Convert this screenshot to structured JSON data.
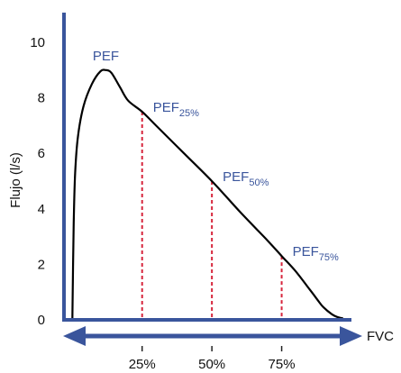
{
  "chart_data": {
    "type": "line",
    "ylabel": "Flujo (l/s)",
    "xlabel": "FVC",
    "ylim": [
      0,
      10
    ],
    "yticks": [
      "0",
      "2",
      "4",
      "6",
      "8",
      "10"
    ],
    "xlim": [
      -0.03,
      1.0
    ],
    "xticks": [
      {
        "value": 0.25,
        "label": "25%"
      },
      {
        "value": 0.5,
        "label": "50%"
      },
      {
        "value": 0.75,
        "label": "75%"
      }
    ],
    "grid": false,
    "series": [
      {
        "color": "#000000",
        "x": [
          0.0,
          0.005,
          0.01,
          0.02,
          0.04,
          0.07,
          0.1,
          0.12,
          0.14,
          0.17,
          0.2,
          0.25,
          0.3,
          0.4,
          0.5,
          0.6,
          0.7,
          0.75,
          0.8,
          0.85,
          0.88,
          0.9,
          0.93,
          0.95,
          0.97
        ],
        "y": [
          0.0,
          3.5,
          5.3,
          6.6,
          7.7,
          8.5,
          8.95,
          9.0,
          8.9,
          8.4,
          7.9,
          7.5,
          7.0,
          6.0,
          5.0,
          3.9,
          2.85,
          2.3,
          1.75,
          1.1,
          0.7,
          0.45,
          0.2,
          0.1,
          0.05
        ],
        "labels": [
          "PEF",
          "PEF",
          "25%",
          "PEF",
          "50%",
          "PEF",
          "75%"
        ]
      }
    ],
    "annotations": [
      {
        "text": "PEF",
        "sub": "",
        "x": 0.12,
        "y": 9.0
      },
      {
        "text": "PEF",
        "sub": "25%",
        "x": 0.25,
        "y": 7.5
      },
      {
        "text": "PEF",
        "sub": "50%",
        "x": 0.5,
        "y": 5.0
      },
      {
        "text": "PEF",
        "sub": "75%",
        "x": 0.75,
        "y": 2.3
      }
    ],
    "markers": [
      {
        "x": 0.25,
        "y": 7.5,
        "color": "#d7263d"
      },
      {
        "x": 0.5,
        "y": 5.0,
        "color": "#d7263d"
      },
      {
        "x": 0.75,
        "y": 2.3,
        "color": "#d7263d"
      }
    ],
    "colors": {
      "axis": "#3a559c",
      "curve": "#000000",
      "marker": "#d7263d",
      "annotation": "#3a559c"
    }
  }
}
